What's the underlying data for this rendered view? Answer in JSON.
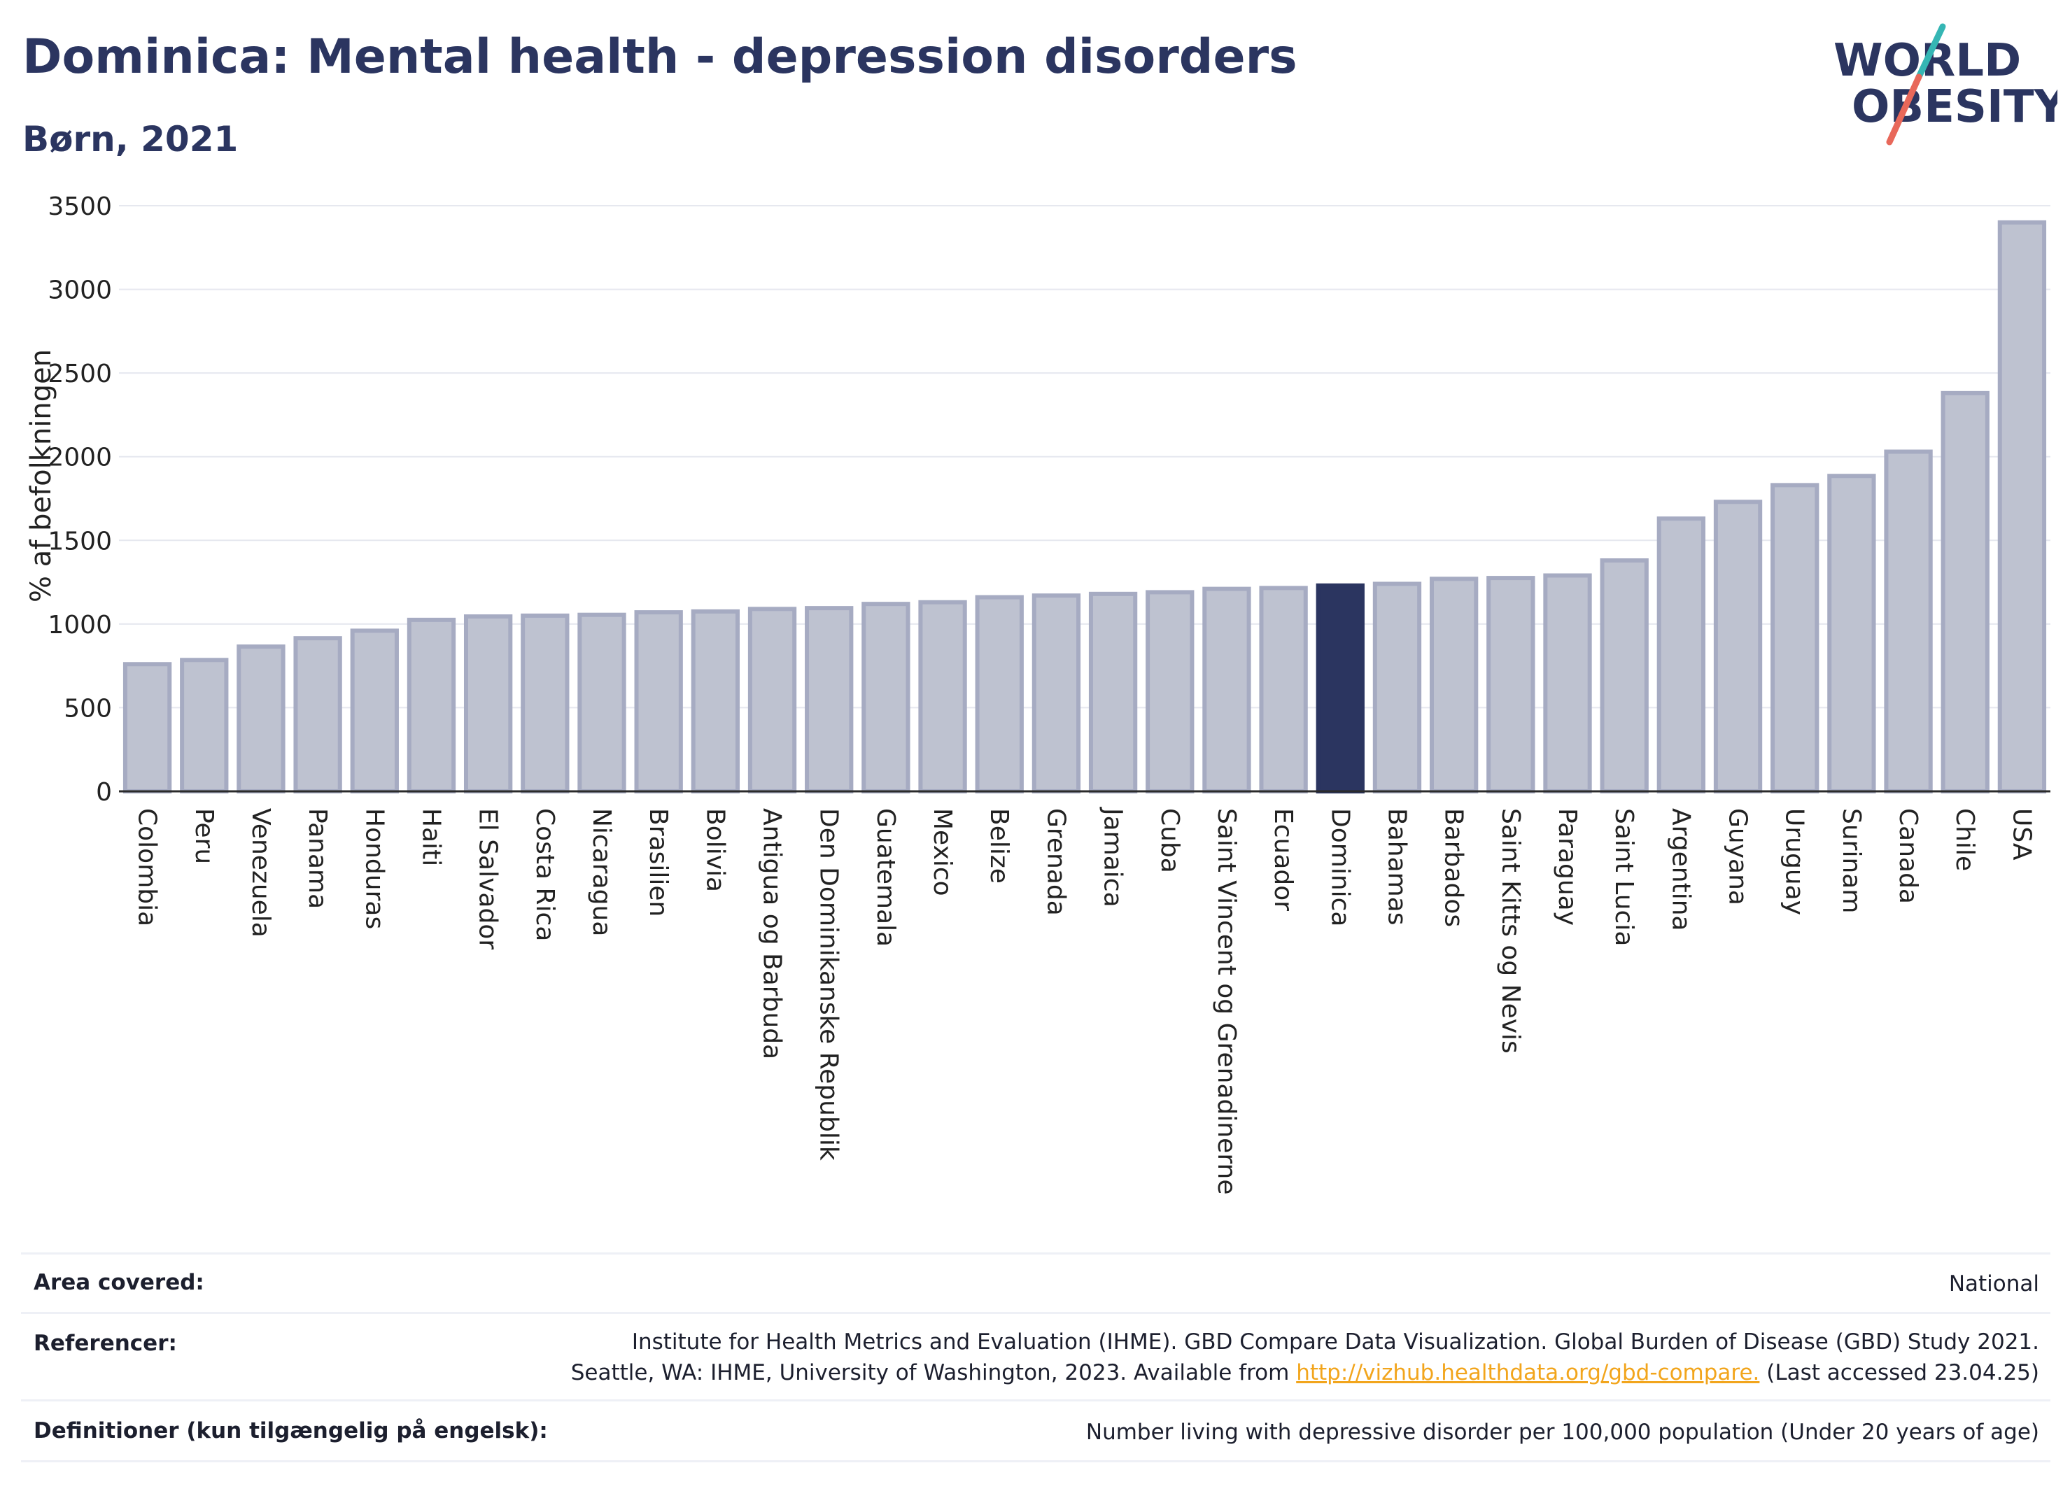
{
  "header": {
    "title": "Dominica: Mental health - depression disorders",
    "subtitle": "Børn, 2021"
  },
  "logo": {
    "line1": "WORLD",
    "line2": "OBESITY"
  },
  "colors": {
    "highlight": "#2b3560",
    "bar_fill": "#bec2d0",
    "bar_stroke": "#a6abc2",
    "title": "#2b3560",
    "link": "#f2a51c",
    "logo_teal": "#35b6b4",
    "logo_coral": "#e8685a"
  },
  "chart_data": {
    "type": "bar",
    "title": "Dominica: Mental health - depression disorders",
    "subtitle": "Børn, 2021",
    "xlabel": "",
    "ylabel": "% af befolkningen",
    "ylim": [
      0,
      3500
    ],
    "yticks": [
      0,
      500,
      1000,
      1500,
      2000,
      2500,
      3000,
      3500
    ],
    "grid": true,
    "highlight": "Dominica",
    "categories": [
      "Colombia",
      "Peru",
      "Venezuela",
      "Panama",
      "Honduras",
      "Haiti",
      "El Salvador",
      "Costa Rica",
      "Nicaragua",
      "Brasilien",
      "Bolivia",
      "Antigua og Barbuda",
      "Den Dominikanske Republik",
      "Guatemala",
      "Mexico",
      "Belize",
      "Grenada",
      "Jamaica",
      "Cuba",
      "Saint Vincent og Grenadinerne",
      "Ecuador",
      "Dominica",
      "Bahamas",
      "Barbados",
      "Saint Kitts og Nevis",
      "Paraguay",
      "Saint Lucia",
      "Argentina",
      "Guyana",
      "Uruguay",
      "Surinam",
      "Canada",
      "Chile",
      "USA"
    ],
    "values": [
      760,
      785,
      865,
      915,
      960,
      1025,
      1045,
      1050,
      1055,
      1070,
      1075,
      1090,
      1095,
      1120,
      1130,
      1160,
      1170,
      1180,
      1190,
      1210,
      1215,
      1230,
      1240,
      1270,
      1275,
      1290,
      1380,
      1630,
      1730,
      1830,
      1885,
      2030,
      2380,
      3400
    ]
  },
  "footer": {
    "area_label": "Area covered:",
    "area_value": "National",
    "ref_label": "Referencer:",
    "ref_line1": "Institute for Health Metrics and Evaluation (IHME). GBD Compare Data Visualization. Global Burden of Disease (GBD) Study 2021.",
    "ref_line2_pre": "Seattle, WA: IHME, University of Washington, 2023. Available from ",
    "ref_link": "http://vizhub.healthdata.org/gbd-compare.",
    "ref_line2_post": " (Last accessed 23.04.25)",
    "def_label": "Definitioner (kun tilgængelig på engelsk):",
    "def_value": "Number living with depressive disorder per 100,000 population (Under 20 years of age)"
  }
}
